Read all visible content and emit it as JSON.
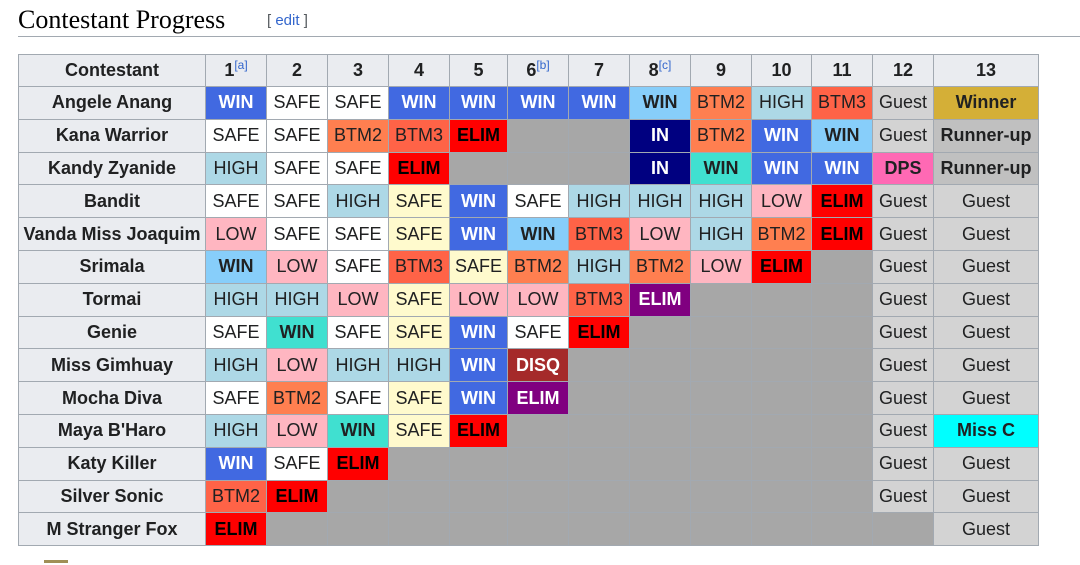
{
  "section": {
    "title": "Contestant Progress",
    "edit_open": "[ ",
    "edit_label": "edit",
    "edit_close": " ]"
  },
  "table": {
    "header": {
      "contestant": "Contestant",
      "episodes": [
        {
          "label": "1",
          "note": "[a]"
        },
        {
          "label": "2",
          "note": ""
        },
        {
          "label": "3",
          "note": ""
        },
        {
          "label": "4",
          "note": ""
        },
        {
          "label": "5",
          "note": ""
        },
        {
          "label": "6",
          "note": "[b]"
        },
        {
          "label": "7",
          "note": ""
        },
        {
          "label": "8",
          "note": "[c]"
        },
        {
          "label": "9",
          "note": ""
        },
        {
          "label": "10",
          "note": ""
        },
        {
          "label": "11",
          "note": ""
        },
        {
          "label": "12",
          "note": ""
        },
        {
          "label": "13",
          "note": ""
        }
      ]
    },
    "rows": [
      {
        "name": "Angele Anang",
        "cells": [
          {
            "t": "WIN",
            "c": "#4169e1"
          },
          {
            "t": "SAFE",
            "c": "#ffffff"
          },
          {
            "t": "SAFE",
            "c": "#ffffff"
          },
          {
            "t": "WIN",
            "c": "#4169e1"
          },
          {
            "t": "WIN",
            "c": "#4169e1"
          },
          {
            "t": "WIN",
            "c": "#4169e1"
          },
          {
            "t": "WIN",
            "c": "#4169e1"
          },
          {
            "t": "WIN",
            "c": "#87cefa"
          },
          {
            "t": "BTM2",
            "c": "#ff7f50"
          },
          {
            "t": "HIGH",
            "c": "#add8e6"
          },
          {
            "t": "BTM3",
            "c": "#ff6347"
          },
          {
            "t": "Guest",
            "c": "#d3d3d3"
          },
          {
            "t": "Winner",
            "c": "#d4af37"
          }
        ]
      },
      {
        "name": "Kana Warrior",
        "cells": [
          {
            "t": "SAFE",
            "c": "#ffffff"
          },
          {
            "t": "SAFE",
            "c": "#ffffff"
          },
          {
            "t": "BTM2",
            "c": "#ff7f50"
          },
          {
            "t": "BTM3",
            "c": "#ff6347"
          },
          {
            "t": "ELIM",
            "c": "#ff0000"
          },
          {
            "t": "",
            "c": ""
          },
          {
            "t": "",
            "c": ""
          },
          {
            "t": "IN",
            "c": "#000080"
          },
          {
            "t": "BTM2",
            "c": "#ff7f50"
          },
          {
            "t": "WIN",
            "c": "#4169e1"
          },
          {
            "t": "WIN",
            "c": "#87cefa"
          },
          {
            "t": "Guest",
            "c": "#d3d3d3"
          },
          {
            "t": "Runner-up",
            "c": "#c0c0c0"
          }
        ]
      },
      {
        "name": "Kandy Zyanide",
        "cells": [
          {
            "t": "HIGH",
            "c": "#add8e6"
          },
          {
            "t": "SAFE",
            "c": "#ffffff"
          },
          {
            "t": "SAFE",
            "c": "#ffffff"
          },
          {
            "t": "ELIM",
            "c": "#ff0000"
          },
          {
            "t": "",
            "c": ""
          },
          {
            "t": "",
            "c": ""
          },
          {
            "t": "",
            "c": ""
          },
          {
            "t": "IN",
            "c": "#000080"
          },
          {
            "t": "WIN",
            "c": "#40e0d0"
          },
          {
            "t": "WIN",
            "c": "#4169e1"
          },
          {
            "t": "WIN",
            "c": "#4169e1"
          },
          {
            "t": "DPS",
            "c": "#ff69b4"
          },
          {
            "t": "Runner-up",
            "c": "#c0c0c0"
          }
        ]
      },
      {
        "name": "Bandit",
        "cells": [
          {
            "t": "SAFE",
            "c": "#ffffff"
          },
          {
            "t": "SAFE",
            "c": "#ffffff"
          },
          {
            "t": "HIGH",
            "c": "#add8e6"
          },
          {
            "t": "SAFE",
            "c": "#fffacd"
          },
          {
            "t": "WIN",
            "c": "#4169e1"
          },
          {
            "t": "SAFE",
            "c": "#ffffff"
          },
          {
            "t": "HIGH",
            "c": "#add8e6"
          },
          {
            "t": "HIGH",
            "c": "#add8e6"
          },
          {
            "t": "HIGH",
            "c": "#add8e6"
          },
          {
            "t": "LOW",
            "c": "#ffb6c1"
          },
          {
            "t": "ELIM",
            "c": "#ff0000"
          },
          {
            "t": "Guest",
            "c": "#d3d3d3"
          },
          {
            "t": "Guest",
            "c": "#d3d3d3"
          }
        ]
      },
      {
        "name": "Vanda Miss Joaquim",
        "cells": [
          {
            "t": "LOW",
            "c": "#ffb6c1"
          },
          {
            "t": "SAFE",
            "c": "#ffffff"
          },
          {
            "t": "SAFE",
            "c": "#ffffff"
          },
          {
            "t": "SAFE",
            "c": "#fffacd"
          },
          {
            "t": "WIN",
            "c": "#4169e1"
          },
          {
            "t": "WIN",
            "c": "#87cefa"
          },
          {
            "t": "BTM3",
            "c": "#ff6347"
          },
          {
            "t": "LOW",
            "c": "#ffb6c1"
          },
          {
            "t": "HIGH",
            "c": "#add8e6"
          },
          {
            "t": "BTM2",
            "c": "#ff7f50"
          },
          {
            "t": "ELIM",
            "c": "#ff0000"
          },
          {
            "t": "Guest",
            "c": "#d3d3d3"
          },
          {
            "t": "Guest",
            "c": "#d3d3d3"
          }
        ]
      },
      {
        "name": "Srimala",
        "cells": [
          {
            "t": "WIN",
            "c": "#87cefa"
          },
          {
            "t": "LOW",
            "c": "#ffb6c1"
          },
          {
            "t": "SAFE",
            "c": "#ffffff"
          },
          {
            "t": "BTM3",
            "c": "#ff6347"
          },
          {
            "t": "SAFE",
            "c": "#fffacd"
          },
          {
            "t": "BTM2",
            "c": "#ff7f50"
          },
          {
            "t": "HIGH",
            "c": "#add8e6"
          },
          {
            "t": "BTM2",
            "c": "#ff7f50"
          },
          {
            "t": "LOW",
            "c": "#ffb6c1"
          },
          {
            "t": "ELIM",
            "c": "#ff0000"
          },
          {
            "t": "",
            "c": ""
          },
          {
            "t": "Guest",
            "c": "#d3d3d3"
          },
          {
            "t": "Guest",
            "c": "#d3d3d3"
          }
        ]
      },
      {
        "name": "Tormai",
        "cells": [
          {
            "t": "HIGH",
            "c": "#add8e6"
          },
          {
            "t": "HIGH",
            "c": "#add8e6"
          },
          {
            "t": "LOW",
            "c": "#ffb6c1"
          },
          {
            "t": "SAFE",
            "c": "#fffacd"
          },
          {
            "t": "LOW",
            "c": "#ffb6c1"
          },
          {
            "t": "LOW",
            "c": "#ffb6c1"
          },
          {
            "t": "BTM3",
            "c": "#ff6347"
          },
          {
            "t": "ELIM",
            "c": "#800080"
          },
          {
            "t": "",
            "c": ""
          },
          {
            "t": "",
            "c": ""
          },
          {
            "t": "",
            "c": ""
          },
          {
            "t": "Guest",
            "c": "#d3d3d3"
          },
          {
            "t": "Guest",
            "c": "#d3d3d3"
          }
        ]
      },
      {
        "name": "Genie",
        "cells": [
          {
            "t": "SAFE",
            "c": "#ffffff"
          },
          {
            "t": "WIN",
            "c": "#40e0d0"
          },
          {
            "t": "SAFE",
            "c": "#ffffff"
          },
          {
            "t": "SAFE",
            "c": "#fffacd"
          },
          {
            "t": "WIN",
            "c": "#4169e1"
          },
          {
            "t": "SAFE",
            "c": "#ffffff"
          },
          {
            "t": "ELIM",
            "c": "#ff0000"
          },
          {
            "t": "",
            "c": ""
          },
          {
            "t": "",
            "c": ""
          },
          {
            "t": "",
            "c": ""
          },
          {
            "t": "",
            "c": ""
          },
          {
            "t": "Guest",
            "c": "#d3d3d3"
          },
          {
            "t": "Guest",
            "c": "#d3d3d3"
          }
        ]
      },
      {
        "name": "Miss Gimhuay",
        "cells": [
          {
            "t": "HIGH",
            "c": "#add8e6"
          },
          {
            "t": "LOW",
            "c": "#ffb6c1"
          },
          {
            "t": "HIGH",
            "c": "#add8e6"
          },
          {
            "t": "HIGH",
            "c": "#add8e6"
          },
          {
            "t": "WIN",
            "c": "#4169e1"
          },
          {
            "t": "DISQ",
            "c": "#a52a2a"
          },
          {
            "t": "",
            "c": ""
          },
          {
            "t": "",
            "c": ""
          },
          {
            "t": "",
            "c": ""
          },
          {
            "t": "",
            "c": ""
          },
          {
            "t": "",
            "c": ""
          },
          {
            "t": "Guest",
            "c": "#d3d3d3"
          },
          {
            "t": "Guest",
            "c": "#d3d3d3"
          }
        ]
      },
      {
        "name": "Mocha Diva",
        "cells": [
          {
            "t": "SAFE",
            "c": "#ffffff"
          },
          {
            "t": "BTM2",
            "c": "#ff7f50"
          },
          {
            "t": "SAFE",
            "c": "#ffffff"
          },
          {
            "t": "SAFE",
            "c": "#fffacd"
          },
          {
            "t": "WIN",
            "c": "#4169e1"
          },
          {
            "t": "ELIM",
            "c": "#800080"
          },
          {
            "t": "",
            "c": ""
          },
          {
            "t": "",
            "c": ""
          },
          {
            "t": "",
            "c": ""
          },
          {
            "t": "",
            "c": ""
          },
          {
            "t": "",
            "c": ""
          },
          {
            "t": "Guest",
            "c": "#d3d3d3"
          },
          {
            "t": "Guest",
            "c": "#d3d3d3"
          }
        ]
      },
      {
        "name": "Maya B'Haro",
        "cells": [
          {
            "t": "HIGH",
            "c": "#add8e6"
          },
          {
            "t": "LOW",
            "c": "#ffb6c1"
          },
          {
            "t": "WIN",
            "c": "#40e0d0"
          },
          {
            "t": "SAFE",
            "c": "#fffacd"
          },
          {
            "t": "ELIM",
            "c": "#ff0000"
          },
          {
            "t": "",
            "c": ""
          },
          {
            "t": "",
            "c": ""
          },
          {
            "t": "",
            "c": ""
          },
          {
            "t": "",
            "c": ""
          },
          {
            "t": "",
            "c": ""
          },
          {
            "t": "",
            "c": ""
          },
          {
            "t": "Guest",
            "c": "#d3d3d3"
          },
          {
            "t": "Miss C",
            "c": "#00ffff"
          }
        ]
      },
      {
        "name": "Katy Killer",
        "cells": [
          {
            "t": "WIN",
            "c": "#4169e1"
          },
          {
            "t": "SAFE",
            "c": "#ffffff"
          },
          {
            "t": "ELIM",
            "c": "#ff0000"
          },
          {
            "t": "",
            "c": ""
          },
          {
            "t": "",
            "c": ""
          },
          {
            "t": "",
            "c": ""
          },
          {
            "t": "",
            "c": ""
          },
          {
            "t": "",
            "c": ""
          },
          {
            "t": "",
            "c": ""
          },
          {
            "t": "",
            "c": ""
          },
          {
            "t": "",
            "c": ""
          },
          {
            "t": "Guest",
            "c": "#d3d3d3"
          },
          {
            "t": "Guest",
            "c": "#d3d3d3"
          }
        ]
      },
      {
        "name": "Silver Sonic",
        "cells": [
          {
            "t": "BTM2",
            "c": "#ff6347"
          },
          {
            "t": "ELIM",
            "c": "#ff0000"
          },
          {
            "t": "",
            "c": ""
          },
          {
            "t": "",
            "c": ""
          },
          {
            "t": "",
            "c": ""
          },
          {
            "t": "",
            "c": ""
          },
          {
            "t": "",
            "c": ""
          },
          {
            "t": "",
            "c": ""
          },
          {
            "t": "",
            "c": ""
          },
          {
            "t": "",
            "c": ""
          },
          {
            "t": "",
            "c": ""
          },
          {
            "t": "Guest",
            "c": "#d3d3d3"
          },
          {
            "t": "Guest",
            "c": "#d3d3d3"
          }
        ]
      },
      {
        "name": "M Stranger Fox",
        "cells": [
          {
            "t": "ELIM",
            "c": "#ff0000"
          },
          {
            "t": "",
            "c": ""
          },
          {
            "t": "",
            "c": ""
          },
          {
            "t": "",
            "c": ""
          },
          {
            "t": "",
            "c": ""
          },
          {
            "t": "",
            "c": ""
          },
          {
            "t": "",
            "c": ""
          },
          {
            "t": "",
            "c": ""
          },
          {
            "t": "",
            "c": ""
          },
          {
            "t": "",
            "c": ""
          },
          {
            "t": "",
            "c": ""
          },
          {
            "t": "",
            "c": ""
          },
          {
            "t": "Guest",
            "c": "#d3d3d3"
          }
        ]
      }
    ]
  }
}
